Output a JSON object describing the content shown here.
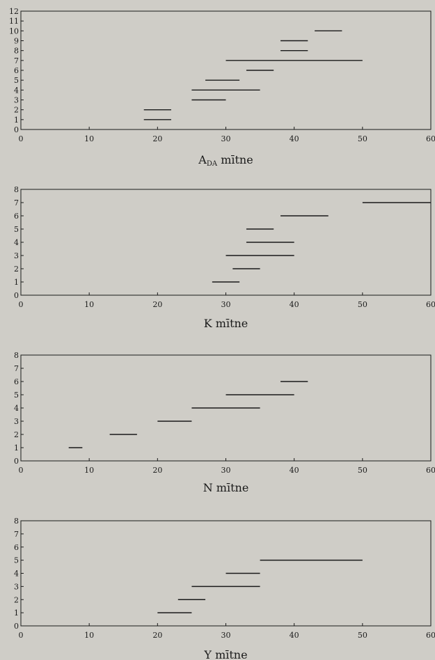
{
  "chart_data": [
    {
      "type": "range_plot",
      "xlabel": "A",
      "xlabel_sub": "DA",
      "xlabel_suffix": " mītne",
      "xlim": [
        0,
        60
      ],
      "ylim": [
        0,
        12
      ],
      "xticks": [
        0,
        10,
        20,
        30,
        40,
        50,
        60
      ],
      "yticks": [
        0,
        1,
        2,
        3,
        4,
        5,
        6,
        7,
        8,
        9,
        10,
        11,
        12
      ],
      "segments": [
        {
          "y": 1,
          "x": [
            18,
            22
          ]
        },
        {
          "y": 2,
          "x": [
            18,
            22
          ]
        },
        {
          "y": 3,
          "x": [
            25,
            30
          ]
        },
        {
          "y": 4,
          "x": [
            25,
            35
          ]
        },
        {
          "y": 5,
          "x": [
            27,
            32
          ]
        },
        {
          "y": 6,
          "x": [
            33,
            37
          ]
        },
        {
          "y": 7,
          "x": [
            30,
            50
          ]
        },
        {
          "y": 8,
          "x": [
            38,
            42
          ]
        },
        {
          "y": 9,
          "x": [
            38,
            42
          ]
        },
        {
          "y": 10,
          "x": [
            43,
            47
          ]
        }
      ]
    },
    {
      "type": "range_plot",
      "xlabel": "K mītne",
      "xlim": [
        0,
        60
      ],
      "ylim": [
        0,
        8
      ],
      "xticks": [
        0,
        10,
        20,
        30,
        40,
        50,
        60
      ],
      "yticks": [
        0,
        1,
        2,
        3,
        4,
        5,
        6,
        7,
        8
      ],
      "segments": [
        {
          "y": 1,
          "x": [
            28,
            32
          ]
        },
        {
          "y": 2,
          "x": [
            31,
            35
          ]
        },
        {
          "y": 3,
          "x": [
            30,
            40
          ]
        },
        {
          "y": 4,
          "x": [
            33,
            40
          ]
        },
        {
          "y": 5,
          "x": [
            33,
            37
          ]
        },
        {
          "y": 6,
          "x": [
            38,
            45
          ]
        },
        {
          "y": 7,
          "x": [
            50,
            60
          ]
        }
      ]
    },
    {
      "type": "range_plot",
      "xlabel": "N mītne",
      "xlim": [
        0,
        60
      ],
      "ylim": [
        0,
        8
      ],
      "xticks": [
        0,
        10,
        20,
        30,
        40,
        50,
        60
      ],
      "yticks": [
        0,
        1,
        2,
        3,
        4,
        5,
        6,
        7,
        8
      ],
      "segments": [
        {
          "y": 1,
          "x": [
            7,
            9
          ]
        },
        {
          "y": 2,
          "x": [
            13,
            17
          ]
        },
        {
          "y": 3,
          "x": [
            20,
            25
          ]
        },
        {
          "y": 4,
          "x": [
            25,
            35
          ]
        },
        {
          "y": 5,
          "x": [
            30,
            40
          ]
        },
        {
          "y": 6,
          "x": [
            38,
            42
          ]
        }
      ]
    },
    {
      "type": "range_plot",
      "xlabel": "Y mītne",
      "xlim": [
        0,
        60
      ],
      "ylim": [
        0,
        8
      ],
      "xticks": [
        0,
        10,
        20,
        30,
        40,
        50,
        60
      ],
      "yticks": [
        0,
        1,
        2,
        3,
        4,
        5,
        6,
        7,
        8
      ],
      "segments": [
        {
          "y": 1,
          "x": [
            20,
            25
          ]
        },
        {
          "y": 2,
          "x": [
            23,
            27
          ]
        },
        {
          "y": 3,
          "x": [
            25,
            35
          ]
        },
        {
          "y": 4,
          "x": [
            30,
            35
          ]
        },
        {
          "y": 5,
          "x": [
            35,
            50
          ]
        }
      ]
    }
  ]
}
